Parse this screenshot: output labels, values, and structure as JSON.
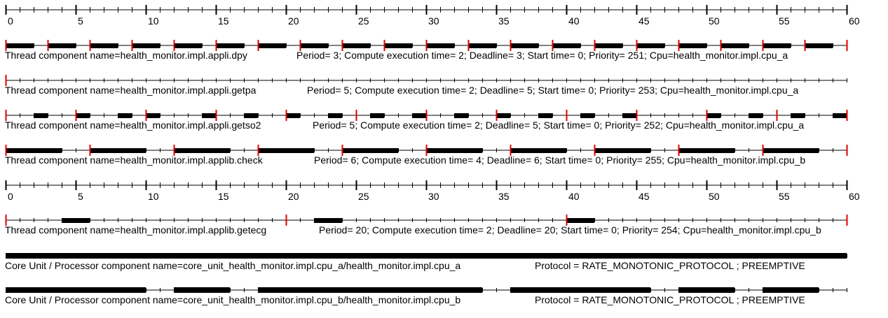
{
  "chart_data": {
    "type": "gantt",
    "time_range": [
      0,
      60
    ],
    "tick_step": 1,
    "major_tick_step": 5,
    "colors": {
      "bar": "#000000",
      "release": "#e00000",
      "axis": "#000000"
    },
    "axes": [
      {
        "id": "axis-top",
        "labels": [
          "0",
          "5",
          "10",
          "15",
          "20",
          "25",
          "30",
          "35",
          "40",
          "45",
          "50",
          "55",
          "60"
        ]
      },
      {
        "id": "axis-mid",
        "labels": [
          "0",
          "5",
          "10",
          "15",
          "20",
          "25",
          "30",
          "35",
          "40",
          "45",
          "50",
          "55",
          "60"
        ]
      }
    ],
    "rows": [
      {
        "id": "dpy",
        "label": "Thread component name=health_monitor.impl.appli.dpy",
        "params": "Period= 3; Compute execution time= 2; Deadline= 3; Start time= 0; Priority= 251; Cpu=health_monitor.impl.cpu_a",
        "releases": [
          0,
          3,
          6,
          9,
          12,
          15,
          18,
          21,
          24,
          27,
          30,
          33,
          36,
          39,
          42,
          45,
          48,
          51,
          54,
          57,
          60
        ],
        "bars": [
          [
            0,
            2
          ],
          [
            3,
            5
          ],
          [
            6,
            8
          ],
          [
            9,
            11
          ],
          [
            12,
            14
          ],
          [
            15,
            17
          ],
          [
            18,
            20
          ],
          [
            21,
            23
          ],
          [
            24,
            26
          ],
          [
            27,
            29
          ],
          [
            30,
            32
          ],
          [
            33,
            35
          ],
          [
            36,
            38
          ],
          [
            39,
            41
          ],
          [
            42,
            44
          ],
          [
            45,
            47
          ],
          [
            48,
            50
          ],
          [
            51,
            53
          ],
          [
            54,
            56
          ],
          [
            57,
            59
          ]
        ]
      },
      {
        "id": "getpa",
        "label": "Thread component name=health_monitor.impl.appli.getpa",
        "params": "Period= 5; Compute execution time= 2; Deadline= 5; Start time= 0; Priority= 253; Cpu=health_monitor.impl.cpu_a",
        "releases": [
          0
        ],
        "bars": []
      },
      {
        "id": "getso2",
        "label": "Thread component name=health_monitor.impl.appli.getso2",
        "params": "Period= 5; Compute execution time= 2; Deadline= 5; Start time= 0; Priority= 252; Cpu=health_monitor.impl.cpu_a",
        "releases": [
          0,
          5,
          10,
          15,
          20,
          25,
          30,
          35,
          40,
          45,
          50,
          55,
          60
        ],
        "bars": [
          [
            2,
            3
          ],
          [
            5,
            6
          ],
          [
            8,
            9
          ],
          [
            10,
            11
          ],
          [
            14,
            15
          ],
          [
            17,
            18
          ],
          [
            20,
            21
          ],
          [
            23,
            24
          ],
          [
            26,
            27
          ],
          [
            29,
            30
          ],
          [
            32,
            33
          ],
          [
            35,
            36
          ],
          [
            38,
            39
          ],
          [
            41,
            42
          ],
          [
            44,
            45
          ],
          [
            50,
            51
          ],
          [
            53,
            54
          ],
          [
            56,
            57
          ],
          [
            59,
            60
          ]
        ]
      },
      {
        "id": "check",
        "label": "Thread component name=health_monitor.impl.applib.check",
        "params": "Period= 6; Compute execution time= 4; Deadline= 6; Start time= 0; Priority= 255; Cpu=health_monitor.impl.cpu_b",
        "releases": [
          0,
          6,
          12,
          18,
          24,
          30,
          36,
          42,
          48,
          54,
          60
        ],
        "bars": [
          [
            0,
            4
          ],
          [
            6,
            10
          ],
          [
            12,
            16
          ],
          [
            18,
            22
          ],
          [
            24,
            28
          ],
          [
            30,
            34
          ],
          [
            36,
            40
          ],
          [
            42,
            46
          ],
          [
            48,
            52
          ],
          [
            54,
            58
          ]
        ]
      },
      {
        "id": "axis-mid",
        "axis": true
      },
      {
        "id": "getecg",
        "label": "Thread component name=health_monitor.impl.applib.getecg",
        "params": "Period= 20; Compute execution time= 2; Deadline= 20; Start time= 0; Priority= 254; Cpu=health_monitor.impl.cpu_b",
        "releases": [
          0,
          20,
          40,
          60
        ],
        "bars": [
          [
            4,
            6
          ],
          [
            22,
            24
          ],
          [
            40,
            42
          ]
        ]
      },
      {
        "id": "cpu_a",
        "label": "Core Unit / Processor component name=core_unit_health_monitor.impl.cpu_a/health_monitor.impl.cpu_a",
        "params": "Protocol = RATE_MONOTONIC_PROTOCOL ; PREEMPTIVE",
        "releases": [],
        "bars": [
          [
            0,
            60
          ]
        ]
      },
      {
        "id": "cpu_b",
        "label": "Core Unit / Processor component name=core_unit_health_monitor.impl.cpu_b/health_monitor.impl.cpu_b",
        "params": "Protocol = RATE_MONOTONIC_PROTOCOL ; PREEMPTIVE",
        "releases": [],
        "bars": [
          [
            0,
            10
          ],
          [
            12,
            16
          ],
          [
            18,
            30
          ],
          [
            30,
            34
          ],
          [
            36,
            46
          ],
          [
            48,
            52
          ],
          [
            54,
            58
          ]
        ]
      }
    ]
  }
}
